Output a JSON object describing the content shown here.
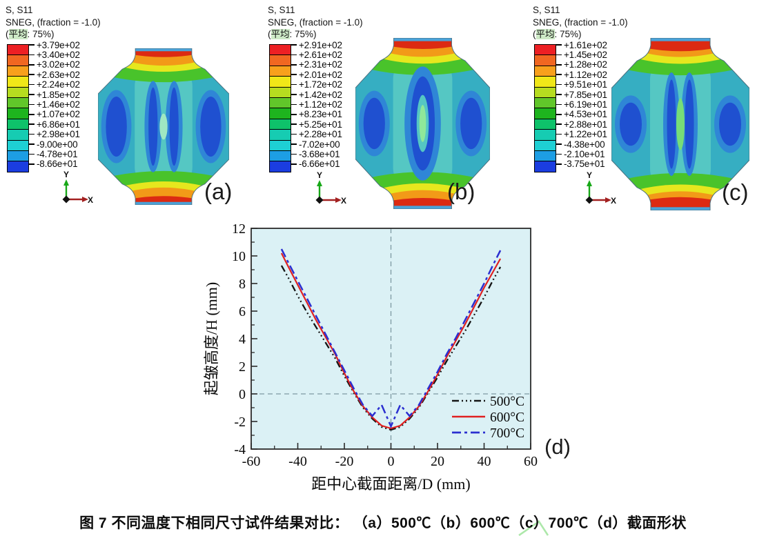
{
  "panels": [
    {
      "id": "a",
      "label": "(a)",
      "header": {
        "line1": "S, S11",
        "line2": "SNEG, (fraction = -1.0)",
        "avg_open": "(",
        "avg_label": "平均",
        "avg_rest": ": 75%)"
      },
      "values": [
        "+3.79e+02",
        "+3.40e+02",
        "+3.02e+02",
        "+2.63e+02",
        "+2.24e+02",
        "+1.85e+02",
        "+1.46e+02",
        "+1.07e+02",
        "+6.86e+01",
        "+2.98e+01",
        "-9.00e+00",
        "-4.78e+01",
        "-8.66e+01"
      ]
    },
    {
      "id": "b",
      "label": "(b)",
      "header": {
        "line1": "S, S11",
        "line2": "SNEG, (fraction = -1.0)",
        "avg_open": "(",
        "avg_label": "平均",
        "avg_rest": ": 75%)"
      },
      "values": [
        "+2.91e+02",
        "+2.61e+02",
        "+2.31e+02",
        "+2.01e+02",
        "+1.72e+02",
        "+1.42e+02",
        "+1.12e+02",
        "+8.23e+01",
        "+5.25e+01",
        "+2.28e+01",
        "-7.02e+00",
        "-3.68e+01",
        "-6.66e+01"
      ]
    },
    {
      "id": "c",
      "label": "(c)",
      "header": {
        "line1": "S, S11",
        "line2": "SNEG, (fraction = -1.0)",
        "avg_open": "(",
        "avg_label": "平均",
        "avg_rest": ": 75%)"
      },
      "values": [
        "+1.61e+02",
        "+1.45e+02",
        "+1.28e+02",
        "+1.12e+02",
        "+9.51e+01",
        "+7.85e+01",
        "+6.19e+01",
        "+4.53e+01",
        "+2.88e+01",
        "+1.22e+01",
        "-4.38e+00",
        "-2.10e+01",
        "-3.75e+01"
      ]
    }
  ],
  "legend_palette": [
    "#ed2024",
    "#f16721",
    "#f8a01c",
    "#f0e718",
    "#b6dc20",
    "#61c62a",
    "#1eb41e",
    "#0ec26a",
    "#16ccb2",
    "#1ed0d4",
    "#1d9ee4",
    "#1b3de0"
  ],
  "triad": {
    "y": "Y",
    "x": "X"
  },
  "chart_data": {
    "type": "line",
    "title": "",
    "xlabel": "距中心截面距离/D (mm)",
    "ylabel": "起皱高度/H (mm)",
    "xlim": [
      -60,
      60
    ],
    "ylim": [
      -4,
      12
    ],
    "xticks": [
      -60,
      -40,
      -20,
      0,
      20,
      40,
      60
    ],
    "yticks": [
      -4,
      -2,
      0,
      2,
      4,
      6,
      8,
      10,
      12
    ],
    "minor_xticks": [
      -50,
      -30,
      -10,
      10,
      30,
      50
    ],
    "minor_yticks": [
      -3,
      -1,
      1,
      3,
      5,
      7,
      9,
      11
    ],
    "grid": false,
    "plot_bg": "#dbf1f5",
    "ref_lines": {
      "vertical_x": 0,
      "horizontal_y": 0
    },
    "legend_position": "lower right",
    "panel_label": "(d)",
    "x": [
      -47,
      -44,
      -40,
      -36,
      -32,
      -28,
      -24,
      -20,
      -16,
      -12,
      -8,
      -4,
      0,
      4,
      8,
      12,
      16,
      20,
      24,
      28,
      32,
      36,
      40,
      44,
      47
    ],
    "series": [
      {
        "name": "500°C",
        "color": "#141414",
        "dash": "10 4 2 4 2 4 2 4",
        "width": 2.3,
        "values": [
          9.3,
          8.4,
          7.1,
          5.9,
          4.8,
          3.7,
          2.6,
          1.3,
          0.1,
          -1.0,
          -1.8,
          -2.4,
          -2.6,
          -2.4,
          -1.8,
          -1.0,
          0.1,
          1.2,
          2.4,
          3.5,
          4.6,
          5.8,
          7.0,
          8.3,
          9.2
        ]
      },
      {
        "name": "600°C",
        "color": "#e02020",
        "dash": "",
        "width": 2.2,
        "values": [
          10.2,
          9.2,
          7.9,
          6.6,
          5.3,
          4.1,
          2.9,
          1.5,
          0.2,
          -0.9,
          -1.7,
          -2.3,
          -2.5,
          -2.3,
          -1.7,
          -0.9,
          0.2,
          1.4,
          2.7,
          3.9,
          5.1,
          6.4,
          7.7,
          8.9,
          9.8
        ]
      },
      {
        "name": "700°C",
        "color": "#2b2fd0",
        "dash": "13 5 4 5",
        "width": 2.5,
        "values": [
          10.5,
          9.5,
          8.2,
          6.9,
          5.6,
          4.3,
          3.0,
          1.7,
          0.4,
          -0.8,
          -1.6,
          -0.8,
          -2.35,
          -0.8,
          -1.6,
          -0.8,
          0.4,
          1.6,
          2.9,
          4.1,
          5.4,
          6.7,
          8.0,
          9.4,
          10.4
        ]
      }
    ]
  },
  "caption": "图 7 不同温度下相同尺寸试件结果对比： （a）500℃（b）600℃（c）700℃（d）截面形状",
  "colors": {
    "ref_line": "#7d98a2",
    "axis": "#2a2a2a",
    "highlight_green": "#cde9c6",
    "scribble_green": "#9fe49b"
  }
}
